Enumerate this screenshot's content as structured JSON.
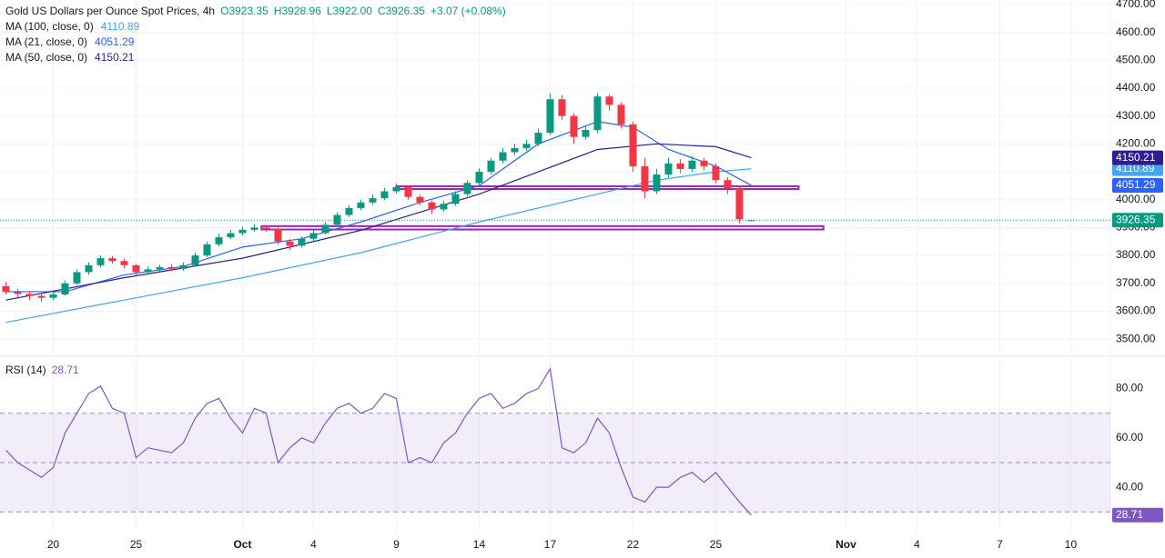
{
  "chart_data": [
    {
      "type": "candlestick",
      "title": "Gold US Dollars per Ounce Spot Prices, 4h",
      "legend_values": [
        "O3923.35",
        "H3928.96",
        "L3922.00",
        "C3926.35",
        "+3.07 (+0.08%)"
      ],
      "up_color": "#089981",
      "down_color": "#f23645",
      "x": [
        0,
        1,
        2,
        3,
        4,
        5,
        6,
        7,
        8,
        9,
        10,
        11,
        12,
        13,
        14,
        15,
        16,
        17,
        18,
        19,
        20,
        21,
        22,
        23,
        24,
        25,
        26,
        27,
        28,
        29,
        30,
        31,
        32,
        33,
        34,
        35,
        36,
        37,
        38,
        39,
        40,
        41,
        42,
        43,
        44,
        45,
        46,
        47,
        48,
        49,
        50,
        51,
        52,
        53,
        54,
        55,
        56,
        57,
        58,
        59,
        60,
        61,
        62,
        63
      ],
      "open": [
        3690,
        3670,
        3662,
        3655,
        3648,
        3660,
        3700,
        3740,
        3765,
        3790,
        3780,
        3765,
        3740,
        3750,
        3758,
        3752,
        3765,
        3800,
        3840,
        3865,
        3880,
        3892,
        3900,
        3895,
        3850,
        3835,
        3860,
        3880,
        3910,
        3945,
        3970,
        3990,
        4005,
        4030,
        4045,
        4010,
        3990,
        3965,
        3985,
        4020,
        4060,
        4100,
        4140,
        4170,
        4185,
        4200,
        4240,
        4360,
        4300,
        4225,
        4250,
        4370,
        4340,
        4270,
        4120,
        4030,
        4090,
        4130,
        4110,
        4140,
        4120,
        4070,
        4040,
        3923.35
      ],
      "high": [
        3705,
        3680,
        3672,
        3665,
        3670,
        3710,
        3750,
        3775,
        3800,
        3798,
        3788,
        3770,
        3760,
        3766,
        3768,
        3775,
        3810,
        3850,
        3878,
        3892,
        3902,
        3912,
        3910,
        3900,
        3858,
        3868,
        3890,
        3920,
        3955,
        3980,
        4000,
        4018,
        4042,
        4058,
        4050,
        4018,
        3998,
        3995,
        4030,
        4070,
        4112,
        4150,
        4185,
        4200,
        4215,
        4255,
        4380,
        4375,
        4310,
        4265,
        4382,
        4378,
        4350,
        4280,
        4150,
        4110,
        4150,
        4145,
        4155,
        4150,
        4130,
        4080,
        4048,
        3928.96
      ],
      "low": [
        3660,
        3650,
        3640,
        3635,
        3640,
        3655,
        3695,
        3730,
        3758,
        3770,
        3755,
        3730,
        3732,
        3742,
        3744,
        3745,
        3760,
        3795,
        3832,
        3858,
        3872,
        3885,
        3885,
        3840,
        3820,
        3828,
        3852,
        3875,
        3905,
        3938,
        3962,
        3982,
        3998,
        4022,
        4000,
        3980,
        3950,
        3958,
        3978,
        4012,
        4052,
        4090,
        4130,
        4160,
        4175,
        4192,
        4232,
        4285,
        4200,
        4215,
        4240,
        4320,
        4255,
        4100,
        4005,
        4020,
        4080,
        4095,
        4100,
        4105,
        4060,
        4020,
        3915,
        3922
      ],
      "close": [
        3670,
        3662,
        3655,
        3648,
        3660,
        3700,
        3740,
        3765,
        3790,
        3780,
        3765,
        3740,
        3750,
        3758,
        3752,
        3765,
        3800,
        3840,
        3865,
        3880,
        3892,
        3900,
        3895,
        3850,
        3835,
        3860,
        3880,
        3910,
        3945,
        3970,
        3990,
        4005,
        4030,
        4045,
        4010,
        3990,
        3965,
        3985,
        4020,
        4060,
        4100,
        4140,
        4170,
        4185,
        4200,
        4240,
        4360,
        4300,
        4225,
        4250,
        4370,
        4340,
        4270,
        4120,
        4030,
        4090,
        4130,
        4110,
        4140,
        4120,
        4070,
        4040,
        3930,
        3926.35
      ],
      "xlim": [
        -0.5,
        93.35
      ],
      "xticks": [
        {
          "value": 4,
          "label": "20"
        },
        {
          "value": 11,
          "label": "25"
        },
        {
          "value": 20,
          "label": "Oct"
        },
        {
          "value": 26,
          "label": "4"
        },
        {
          "value": 33,
          "label": "9"
        },
        {
          "value": 40,
          "label": "14"
        },
        {
          "value": 46,
          "label": "17"
        },
        {
          "value": 53,
          "label": "22"
        },
        {
          "value": 60,
          "label": "25"
        },
        {
          "value": 71,
          "label": "Nov"
        },
        {
          "value": 77,
          "label": "4"
        },
        {
          "value": 84,
          "label": "7"
        },
        {
          "value": 90,
          "label": "10"
        }
      ],
      "ylim": [
        3445,
        4716
      ],
      "yticks": [
        {
          "value": 3500,
          "label": "3500.00"
        },
        {
          "value": 3600,
          "label": "3600.00"
        },
        {
          "value": 3700,
          "label": "3700.00"
        },
        {
          "value": 3800,
          "label": "3800.00"
        },
        {
          "value": 3900,
          "label": "3900.00"
        },
        {
          "value": 4000,
          "label": "4000.00"
        },
        {
          "value": 4100,
          "label": "4100.00"
        },
        {
          "value": 4200,
          "label": "4200.00"
        },
        {
          "value": 4300,
          "label": "4300.00"
        },
        {
          "value": 4400,
          "label": "4400.00"
        },
        {
          "value": 4500,
          "label": "4500.00"
        },
        {
          "value": 4600,
          "label": "4600.00"
        },
        {
          "value": 4700,
          "label": "4700.00"
        }
      ],
      "grid": true,
      "series": [
        {
          "name": "MA (100, close, 0)",
          "color": "#42a5f5",
          "x": [
            0,
            10,
            20,
            30,
            40,
            50,
            55,
            60,
            63
          ],
          "values": [
            3560,
            3640,
            3720,
            3810,
            3920,
            4020,
            4070,
            4100,
            4110.89
          ]
        },
        {
          "name": "MA (21, close, 0)",
          "color": "#2962ff",
          "x": [
            0,
            5,
            10,
            15,
            20,
            25,
            30,
            35,
            40,
            45,
            50,
            53,
            56,
            60,
            63
          ],
          "values": [
            3670,
            3670,
            3730,
            3760,
            3830,
            3860,
            3920,
            3990,
            4050,
            4200,
            4280,
            4260,
            4180,
            4120,
            4051.29
          ]
        },
        {
          "name": "MA (50, close, 0)",
          "color": "#311b92",
          "x": [
            0,
            10,
            20,
            30,
            40,
            45,
            50,
            55,
            60,
            63
          ],
          "values": [
            3640,
            3720,
            3790,
            3890,
            4020,
            4100,
            4180,
            4200,
            4190,
            4150.21
          ]
        }
      ],
      "level_color": "#9c27b0",
      "levels": [
        {
          "low": 4042,
          "high": 4048,
          "start": 33,
          "end": 67
        },
        {
          "low": 3893,
          "high": 3905,
          "start": 21.6,
          "end": 69.1
        }
      ]
    },
    {
      "type": "line",
      "title": "RSI (14)",
      "color": "#7e57c2",
      "x": [
        0,
        1,
        2,
        3,
        4,
        5,
        6,
        7,
        8,
        9,
        10,
        11,
        12,
        13,
        14,
        15,
        16,
        17,
        18,
        19,
        20,
        21,
        22,
        23,
        24,
        25,
        26,
        27,
        28,
        29,
        30,
        31,
        32,
        33,
        34,
        35,
        36,
        37,
        38,
        39,
        40,
        41,
        42,
        43,
        44,
        45,
        46,
        47,
        48,
        49,
        50,
        51,
        52,
        53,
        54,
        55,
        56,
        57,
        58,
        59,
        60,
        61,
        62,
        63
      ],
      "values": [
        55,
        50,
        47,
        44,
        48,
        62,
        70,
        78,
        81,
        72,
        70,
        52,
        56,
        55,
        54,
        58,
        68,
        74,
        76,
        68,
        62,
        72,
        70,
        50,
        56,
        60,
        58,
        66,
        72,
        74,
        70,
        72,
        78,
        76,
        50,
        52,
        50,
        58,
        62,
        70,
        76,
        78,
        72,
        74,
        78,
        80,
        88,
        56,
        54,
        58,
        68,
        62,
        48,
        36,
        34,
        40,
        40,
        44,
        46,
        42,
        46,
        40,
        34,
        28.71
      ],
      "xlim": [
        -0.5,
        93.35
      ],
      "ylim": [
        22,
        92
      ],
      "yticks": [
        {
          "value": 40,
          "label": "40.00"
        },
        {
          "value": 60,
          "label": "60.00"
        },
        {
          "value": 80,
          "label": "80.00"
        }
      ],
      "band": [
        30,
        70
      ],
      "levels": [
        30,
        50,
        70
      ]
    }
  ]
}
